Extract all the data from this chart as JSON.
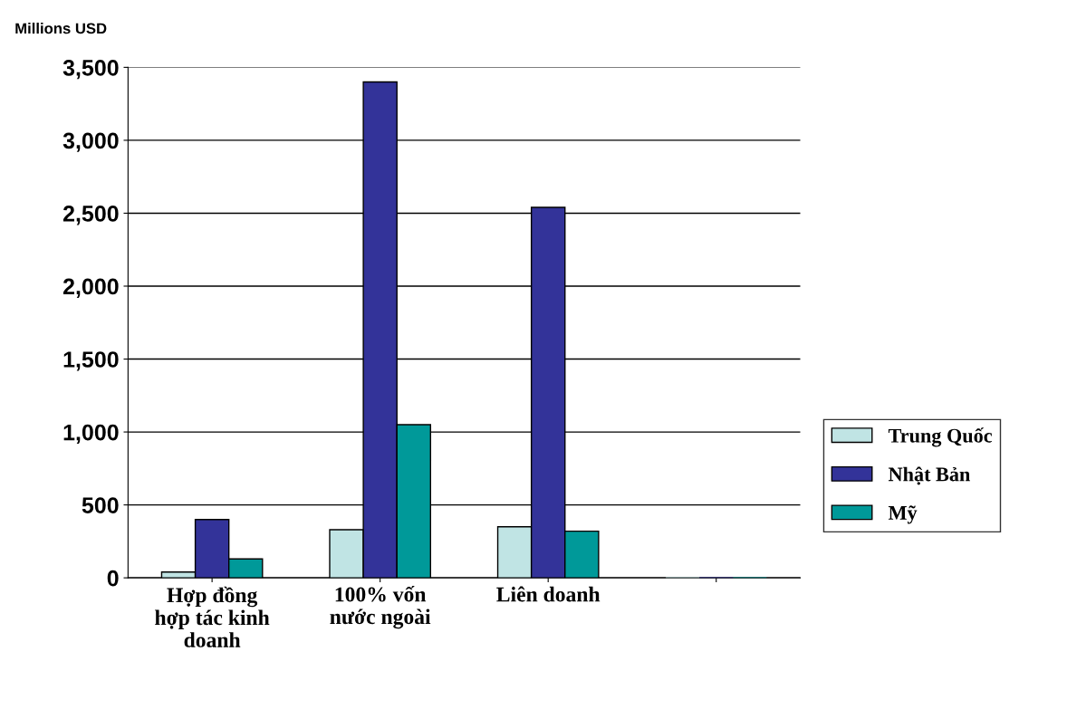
{
  "chart_data": {
    "type": "bar",
    "ylabel": "Millions USD",
    "categories": [
      "Hợp đồng\nhợp tác kinh\ndoanh",
      "100% vốn\nnước ngoài",
      "Liên doanh",
      null
    ],
    "series": [
      {
        "name": "Trung Quốc",
        "color": "#c0e4e4",
        "values": [
          40,
          330,
          350,
          0
        ]
      },
      {
        "name": "Nhật Bản",
        "color": "#333399",
        "values": [
          400,
          3400,
          2540,
          0
        ]
      },
      {
        "name": "Mỹ",
        "color": "#009999",
        "values": [
          130,
          1050,
          320,
          0
        ]
      }
    ],
    "ylim": [
      0,
      3500
    ],
    "yticks": [
      0,
      500,
      {
        "value": 1000,
        "label": "1,000"
      },
      {
        "value": 1500,
        "label": "1,500"
      },
      {
        "value": 2000,
        "label": "2,000"
      },
      {
        "value": 2500,
        "label": "2,500"
      },
      {
        "value": 3000,
        "label": "3,000"
      },
      {
        "value": 3500,
        "label": "3,500"
      }
    ],
    "grid": "y",
    "legend": "right"
  }
}
